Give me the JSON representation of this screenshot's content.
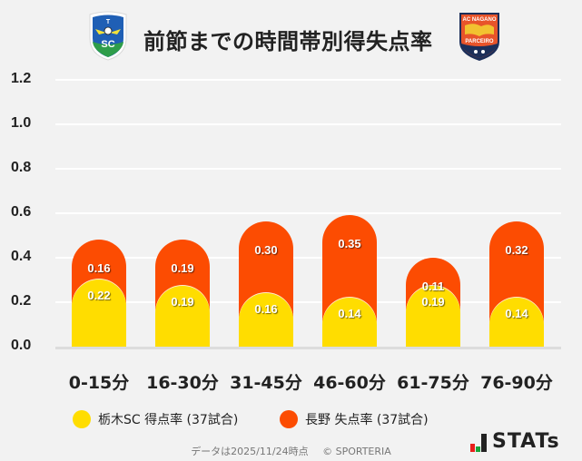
{
  "header": {
    "title": "前節までの時間帯別得失点率",
    "left_crest": "tochigi-sc-crest",
    "right_crest": "ac-nagano-parceiro-crest",
    "right_crest_text_top": "AC NAGANO",
    "right_crest_text_bottom": "PARCEIRO"
  },
  "colors": {
    "tochigi": "#ffdd00",
    "nagano": "#fc4c02",
    "background": "#f2f2f2",
    "grid": "#ffffff"
  },
  "chart_data": {
    "type": "bar",
    "stacked": "overlapping",
    "title": "前節までの時間帯別得失点率",
    "categories": [
      "0-15分",
      "16-30分",
      "31-45分",
      "46-60分",
      "61-75分",
      "76-90分"
    ],
    "series": [
      {
        "name": "栃木SC 得点率 (37試合)",
        "color": "#ffdd00",
        "values": [
          0.22,
          0.19,
          0.16,
          0.14,
          0.19,
          0.14
        ]
      },
      {
        "name": "長野 失点率 (37試合)",
        "color": "#fc4c02",
        "values": [
          0.16,
          0.19,
          0.3,
          0.35,
          0.11,
          0.32
        ]
      }
    ],
    "xlabel": "",
    "ylabel": "",
    "ylim": [
      0,
      1.2
    ],
    "yticks": [
      "0.0",
      "0.2",
      "0.4",
      "0.6",
      "0.8",
      "1.0",
      "1.2"
    ],
    "grid": true,
    "legend_position": "bottom"
  },
  "legend": [
    {
      "label": "栃木SC 得点率 (37試合)",
      "color": "#ffdd00"
    },
    {
      "label": "長野 失点率 (37試合)",
      "color": "#fc4c02"
    }
  ],
  "footer": {
    "date_note": "データは2025/11/24時点",
    "copyright": "© SPORTERIA"
  },
  "brand": {
    "logo_text": "STATs"
  }
}
